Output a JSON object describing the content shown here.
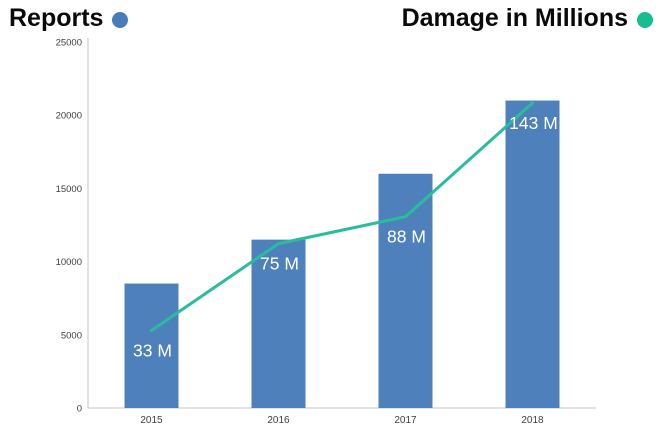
{
  "legend": {
    "reports": {
      "label": "Reports",
      "dot_color": "#4A7CBA"
    },
    "damage": {
      "label": "Damage in Millions",
      "dot_color": "#17BD8F"
    }
  },
  "chart_data": {
    "type": "bar",
    "subtype": "combo-bar-line",
    "categories": [
      "2015",
      "2016",
      "2017",
      "2018"
    ],
    "series": [
      {
        "name": "Reports",
        "type": "bar",
        "values": [
          8500,
          11500,
          16000,
          21000
        ],
        "color": "#4E80BC"
      },
      {
        "name": "Damage in Millions",
        "type": "line",
        "values": [
          33,
          75,
          88,
          143
        ],
        "labels": [
          "33 M",
          "75 M",
          "88 M",
          "143 M"
        ],
        "color": "#29BD9D",
        "label_color": "#ffffff"
      }
    ],
    "title": "",
    "xlabel": "",
    "ylabel": "",
    "y_axis": {
      "min": 0,
      "max": 25000,
      "tick_step": 5000,
      "ticks": [
        "0",
        "5000",
        "10000",
        "15000",
        "20000",
        "25000"
      ],
      "tick_color": "#3f3f3f"
    },
    "x_axis": {
      "tick_color": "#3f3f3f"
    },
    "axis_line_color": "#c6c6c6",
    "grid": false,
    "legend_position": "top"
  }
}
